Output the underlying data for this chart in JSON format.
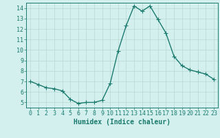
{
  "x": [
    0,
    1,
    2,
    3,
    4,
    5,
    6,
    7,
    8,
    9,
    10,
    11,
    12,
    13,
    14,
    15,
    16,
    17,
    18,
    19,
    20,
    21,
    22,
    23
  ],
  "y": [
    7.0,
    6.7,
    6.4,
    6.3,
    6.1,
    5.3,
    4.9,
    5.0,
    5.0,
    5.2,
    6.8,
    9.9,
    12.3,
    14.2,
    13.7,
    14.2,
    12.9,
    11.6,
    9.4,
    8.5,
    8.1,
    7.9,
    7.7,
    7.2
  ],
  "xlim": [
    -0.5,
    23.5
  ],
  "ylim": [
    4.5,
    14.5
  ],
  "yticks": [
    5,
    6,
    7,
    8,
    9,
    10,
    11,
    12,
    13,
    14
  ],
  "xticks": [
    0,
    1,
    2,
    3,
    4,
    5,
    6,
    7,
    8,
    9,
    10,
    11,
    12,
    13,
    14,
    15,
    16,
    17,
    18,
    19,
    20,
    21,
    22,
    23
  ],
  "xlabel": "Humidex (Indice chaleur)",
  "line_color": "#1a7a6e",
  "marker": "+",
  "bg_color": "#d4f0ee",
  "grid_color": "#b8d8d4",
  "axis_color": "#1a7a6e",
  "label_color": "#1a7a6e",
  "tick_fontsize": 6,
  "xlabel_fontsize": 7,
  "linewidth": 1.0,
  "markersize": 4,
  "markeredgewidth": 0.8
}
